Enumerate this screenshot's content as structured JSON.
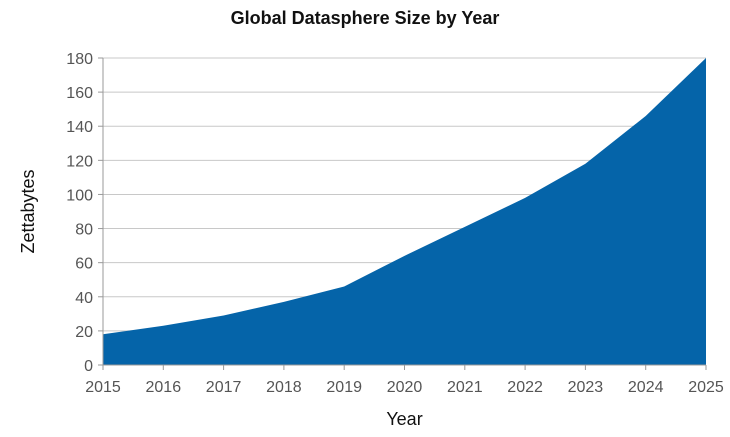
{
  "chart_data": {
    "type": "area",
    "title": "Global Datasphere Size by Year",
    "xlabel": "Year",
    "ylabel": "Zettabytes",
    "x": [
      2015,
      2016,
      2017,
      2018,
      2019,
      2020,
      2021,
      2022,
      2023,
      2024,
      2025
    ],
    "series": [
      {
        "values": [
          18,
          23,
          29,
          37,
          46,
          64,
          81,
          98,
          118,
          146,
          180
        ]
      }
    ],
    "ylim": [
      0,
      180
    ],
    "yticks": [
      0,
      20,
      40,
      60,
      80,
      100,
      120,
      140,
      160,
      180
    ],
    "grid": true,
    "colors": {
      "fill": "#0564A9",
      "grid": "#c8c8c8",
      "axis": "#999999"
    }
  }
}
